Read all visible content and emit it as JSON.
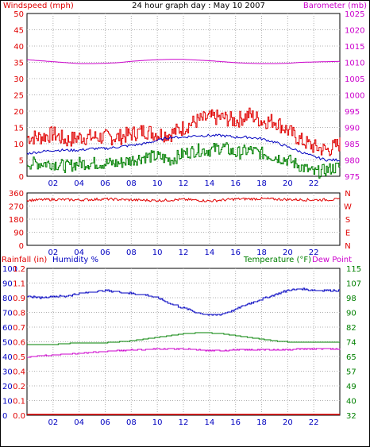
{
  "header": {
    "left": "Windspeed (mph)",
    "center": "24 hour graph day : May 10 2007",
    "right": "Barometer (mb)"
  },
  "colors": {
    "red": "#e00000",
    "green": "#008000",
    "blue": "#0000c0",
    "magenta": "#cc00cc",
    "grid": "#b0b0b0",
    "frame": "#000000"
  },
  "chart_data": [
    {
      "name_hint": "wind-barometer",
      "type": "line",
      "x_ticks": [
        "02",
        "04",
        "06",
        "08",
        "10",
        "12",
        "14",
        "16",
        "18",
        "20",
        "22"
      ],
      "x_range": [
        0,
        24
      ],
      "y_left": {
        "title": "Windspeed (mph)",
        "ticks": [
          "0",
          "5",
          "10",
          "15",
          "20",
          "25",
          "30",
          "35",
          "40",
          "45",
          "50"
        ],
        "range": [
          0,
          50
        ]
      },
      "y_right": {
        "title": "Barometer (mb)",
        "ticks": [
          "975",
          "980",
          "985",
          "990",
          "995",
          "1000",
          "1005",
          "1010",
          "1015",
          "1020",
          "1025"
        ],
        "range": [
          975,
          1025
        ]
      },
      "series": [
        {
          "color": "red",
          "axis": "left",
          "x": [
            0,
            1,
            2,
            3,
            4,
            5,
            6,
            7,
            8,
            9,
            10,
            11,
            12,
            13,
            14,
            15,
            16,
            17,
            18,
            19,
            20,
            21,
            22,
            23,
            24
          ],
          "values": [
            12,
            12,
            13,
            11,
            12,
            12,
            12,
            12,
            13,
            14,
            13,
            13,
            15,
            17,
            18,
            18,
            17,
            19,
            17,
            17,
            14,
            11,
            9,
            8,
            10
          ]
        },
        {
          "color": "green",
          "axis": "left",
          "x": [
            0,
            1,
            2,
            3,
            4,
            5,
            6,
            7,
            8,
            9,
            10,
            11,
            12,
            13,
            14,
            15,
            16,
            17,
            18,
            19,
            20,
            21,
            22,
            23,
            24
          ],
          "values": [
            4,
            4,
            4,
            3,
            4,
            4,
            4,
            4,
            5,
            6,
            6,
            5,
            7,
            8,
            8,
            9,
            7,
            8,
            7,
            6,
            5,
            3,
            1,
            2,
            3
          ]
        },
        {
          "color": "blue",
          "axis": "left",
          "x": [
            0,
            1,
            2,
            3,
            4,
            5,
            6,
            7,
            8,
            9,
            10,
            11,
            12,
            13,
            14,
            15,
            16,
            17,
            18,
            19,
            20,
            21,
            22,
            23,
            24
          ],
          "values": [
            7,
            7.5,
            8,
            8,
            8,
            8.5,
            8.5,
            9,
            9.5,
            10,
            11,
            12,
            12,
            12.5,
            12.5,
            12.5,
            12,
            12,
            11.5,
            10.5,
            9,
            7.5,
            6,
            5,
            5
          ]
        },
        {
          "color": "magenta",
          "axis": "right",
          "x": [
            0,
            1,
            2,
            3,
            4,
            5,
            6,
            7,
            8,
            9,
            10,
            11,
            12,
            13,
            14,
            15,
            16,
            17,
            18,
            19,
            20,
            21,
            22,
            23,
            24
          ],
          "values": [
            1010.8,
            1010.5,
            1010.2,
            1009.9,
            1009.6,
            1009.6,
            1009.7,
            1009.9,
            1010.3,
            1010.6,
            1010.8,
            1010.9,
            1010.9,
            1010.7,
            1010.5,
            1010.2,
            1009.9,
            1009.7,
            1009.6,
            1009.6,
            1009.7,
            1010.0,
            1010.1,
            1010.2,
            1010.3
          ]
        }
      ]
    },
    {
      "name_hint": "wind-direction",
      "type": "line",
      "x_ticks": [
        "02",
        "04",
        "06",
        "08",
        "10",
        "12",
        "14",
        "16",
        "18",
        "20",
        "22"
      ],
      "x_range": [
        0,
        24
      ],
      "y_left": {
        "ticks": [
          "0",
          "90",
          "180",
          "270",
          "360"
        ],
        "range": [
          0,
          360
        ]
      },
      "y_right": {
        "ticks": [
          "N",
          "E",
          "S",
          "W",
          "N"
        ]
      },
      "series": [
        {
          "color": "red",
          "axis": "left",
          "x": [
            0,
            2,
            4,
            6,
            8,
            10,
            12,
            14,
            16,
            18,
            20,
            22,
            24
          ],
          "values": [
            310,
            315,
            312,
            318,
            312,
            308,
            315,
            305,
            318,
            320,
            315,
            312,
            315
          ]
        }
      ]
    },
    {
      "name_hint": "rain-humidity-temperature",
      "type": "line",
      "x_ticks": [
        "02",
        "04",
        "06",
        "08",
        "10",
        "12",
        "14",
        "16",
        "18",
        "20",
        "22"
      ],
      "x_range": [
        0,
        24
      ],
      "header_left_red": "Rainfall (in)",
      "header_left_blue": "Humidity %",
      "header_right_green": "Temperature (°F)",
      "header_right_magenta": "Dew Point",
      "y_rain": {
        "ticks": [
          "0.0",
          "0.1",
          "0.2",
          "0.4",
          "0.5",
          "0.6",
          "0.7",
          "0.8",
          "0.9",
          "1.1",
          "1.2"
        ],
        "range": [
          0,
          1.2
        ]
      },
      "y_humidity": {
        "ticks": [
          "0",
          "10",
          "20",
          "30",
          "40",
          "50",
          "60",
          "70",
          "80",
          "90",
          "100"
        ],
        "range": [
          0,
          100
        ]
      },
      "y_right": {
        "ticks": [
          "32",
          "40",
          "49",
          "57",
          "65",
          "74",
          "82",
          "90",
          "98",
          "107",
          "115"
        ],
        "range": [
          32,
          115
        ]
      },
      "series": [
        {
          "color": "blue",
          "axis": "humidity",
          "x": [
            0,
            1,
            2,
            3,
            4,
            5,
            6,
            7,
            8,
            9,
            10,
            11,
            12,
            13,
            14,
            15,
            16,
            17,
            18,
            19,
            20,
            21,
            22,
            23,
            24
          ],
          "values": [
            81,
            80,
            81,
            81,
            83,
            84,
            85,
            84,
            83,
            82,
            80,
            76,
            73,
            70,
            68,
            69,
            72,
            76,
            79,
            82,
            85,
            86,
            85,
            85,
            85
          ]
        },
        {
          "color": "green",
          "axis": "temp",
          "x": [
            0,
            1,
            2,
            3,
            4,
            5,
            6,
            7,
            8,
            9,
            10,
            11,
            12,
            13,
            14,
            15,
            16,
            17,
            18,
            19,
            20,
            21,
            22,
            23,
            24
          ],
          "values": [
            72,
            72,
            72,
            72.5,
            73,
            73,
            73,
            73.5,
            74,
            75,
            76,
            77,
            78,
            78.5,
            78.5,
            78,
            77,
            76,
            75,
            74,
            73.5,
            73.5,
            73.5,
            73.5,
            73.5
          ]
        },
        {
          "color": "magenta",
          "axis": "temp",
          "x": [
            0,
            1,
            2,
            3,
            4,
            5,
            6,
            7,
            8,
            9,
            10,
            11,
            12,
            13,
            14,
            15,
            16,
            17,
            18,
            19,
            20,
            21,
            22,
            23,
            24
          ],
          "values": [
            65,
            65.5,
            66,
            66.5,
            67,
            67.5,
            68,
            68.5,
            69,
            69,
            69.5,
            69.5,
            69.5,
            69,
            68.5,
            68.5,
            69,
            69,
            69,
            69,
            69,
            69.5,
            69.5,
            69.5,
            69.5
          ]
        },
        {
          "color": "red",
          "axis": "rain",
          "x": [
            0,
            24
          ],
          "values": [
            0,
            0
          ]
        }
      ]
    }
  ]
}
